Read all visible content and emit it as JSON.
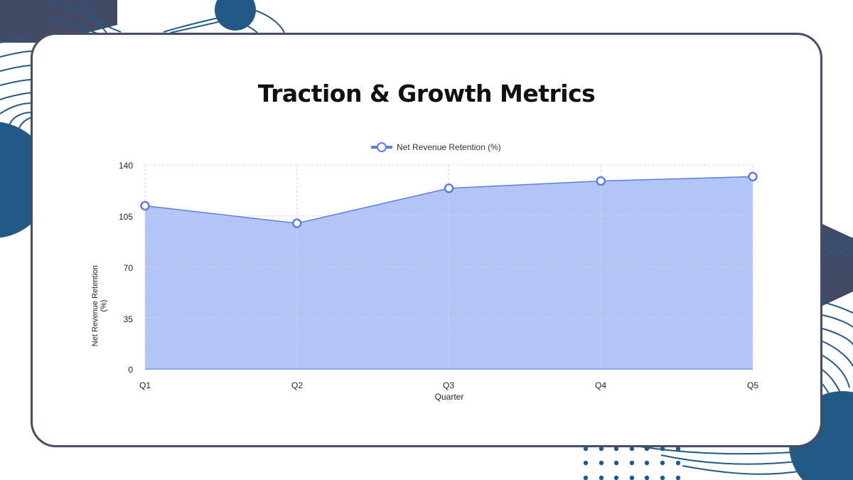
{
  "slide": {
    "title": "Traction & Growth Metrics"
  },
  "colors": {
    "card_border": "#454d68",
    "accent_dark_blue": "#235a85",
    "accent_navy": "#424a66",
    "series_line": "#5b7fe0",
    "series_fill": "#b3c4f6"
  },
  "chart": {
    "legend_label": "Net Revenue Retention (%)",
    "xlabel": "Quarter",
    "ylabel": "Net Revenue Retention (%)",
    "y_ticks": [
      "140",
      "105",
      "70",
      "35",
      "0"
    ],
    "x_ticks": [
      "Q1",
      "Q2",
      "Q3",
      "Q4",
      "Q5"
    ]
  },
  "chart_data": {
    "type": "area",
    "title": "Traction & Growth Metrics",
    "categories": [
      "Q1",
      "Q2",
      "Q3",
      "Q4",
      "Q5"
    ],
    "series": [
      {
        "name": "Net Revenue Retention (%)",
        "values": [
          112,
          100,
          124,
          129,
          132
        ]
      }
    ],
    "xlabel": "Quarter",
    "ylabel": "Net Revenue Retention (%)",
    "ylim": [
      0,
      140
    ],
    "yticks": [
      0,
      35,
      70,
      105,
      140
    ],
    "grid": true,
    "legend_position": "top"
  }
}
